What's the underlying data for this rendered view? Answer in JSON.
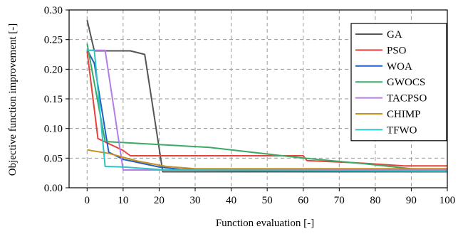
{
  "chart_data": {
    "type": "line",
    "title": "",
    "xlabel": "Function evaluation [-]",
    "ylabel": "Objective function improvement [-]",
    "xlim": [
      -5,
      100
    ],
    "ylim": [
      0,
      0.3
    ],
    "x_ticks": [
      0,
      10,
      20,
      30,
      40,
      50,
      60,
      70,
      80,
      90,
      100
    ],
    "y_ticks": [
      0.0,
      0.05,
      0.1,
      0.15,
      0.2,
      0.25,
      0.3
    ],
    "x_tick_labels": [
      "0",
      "10",
      "20",
      "30",
      "40",
      "50",
      "60",
      "70",
      "80",
      "90",
      "100"
    ],
    "y_tick_labels": [
      "0.00",
      "0.05",
      "0.10",
      "0.15",
      "0.20",
      "0.25",
      "0.30"
    ],
    "grid": true,
    "legend_position": "top-right",
    "series": [
      {
        "name": "GA",
        "color": "#555555",
        "points": [
          [
            0,
            0.283
          ],
          [
            2,
            0.231
          ],
          [
            12,
            0.231
          ],
          [
            16,
            0.225
          ],
          [
            21,
            0.027
          ],
          [
            30,
            0.027
          ],
          [
            100,
            0.027
          ]
        ]
      },
      {
        "name": "PSO",
        "color": "#e8413c",
        "points": [
          [
            0,
            0.23
          ],
          [
            3,
            0.083
          ],
          [
            10,
            0.063
          ],
          [
            12,
            0.054
          ],
          [
            60,
            0.054
          ],
          [
            61,
            0.046
          ],
          [
            75,
            0.042
          ],
          [
            88,
            0.037
          ],
          [
            100,
            0.037
          ]
        ]
      },
      {
        "name": "WOA",
        "color": "#1f5fc4",
        "points": [
          [
            0,
            0.233
          ],
          [
            2,
            0.21
          ],
          [
            6,
            0.06
          ],
          [
            10,
            0.048
          ],
          [
            20,
            0.035
          ],
          [
            26,
            0.031
          ],
          [
            100,
            0.031
          ]
        ]
      },
      {
        "name": "GWOCS",
        "color": "#3aaa66",
        "points": [
          [
            0,
            0.243
          ],
          [
            5,
            0.078
          ],
          [
            20,
            0.073
          ],
          [
            34,
            0.068
          ],
          [
            60,
            0.05
          ],
          [
            78,
            0.04
          ],
          [
            90,
            0.032
          ],
          [
            100,
            0.03
          ]
        ]
      },
      {
        "name": "TACPSO",
        "color": "#b37ee6",
        "points": [
          [
            0,
            0.232
          ],
          [
            5,
            0.232
          ],
          [
            10,
            0.03
          ],
          [
            100,
            0.03
          ]
        ]
      },
      {
        "name": "CHIMP",
        "color": "#c8901a",
        "points": [
          [
            0,
            0.064
          ],
          [
            6,
            0.058
          ],
          [
            14,
            0.045
          ],
          [
            22,
            0.036
          ],
          [
            30,
            0.032
          ],
          [
            100,
            0.032
          ]
        ]
      },
      {
        "name": "TFWO",
        "color": "#2ec4c4",
        "points": [
          [
            0,
            0.232
          ],
          [
            2,
            0.232
          ],
          [
            5,
            0.036
          ],
          [
            10,
            0.035
          ],
          [
            22,
            0.03
          ],
          [
            100,
            0.028
          ]
        ]
      }
    ]
  }
}
